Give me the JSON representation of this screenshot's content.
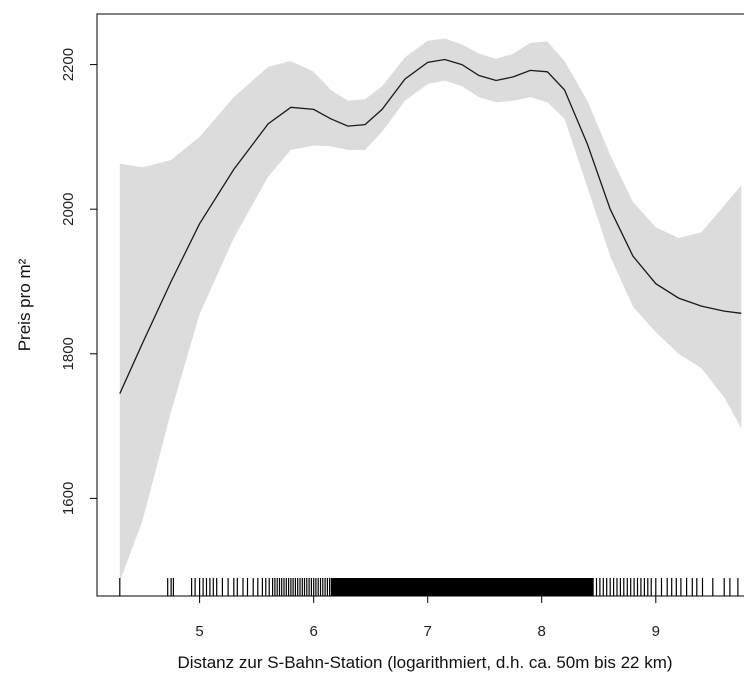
{
  "chart_data": {
    "type": "line",
    "title": "",
    "xlabel": "Distanz zur S-Bahn-Station (logarithmiert, d.h. ca. 50m bis 22 km)",
    "ylabel": "Preis pro m²",
    "xlim": [
      4.1,
      9.8
    ],
    "ylim": [
      1465,
      2270
    ],
    "x_ticks": [
      5,
      6,
      7,
      8,
      9
    ],
    "y_ticks": [
      1600,
      1800,
      2000,
      2200
    ],
    "grid": false,
    "legend": "none",
    "colors": {
      "line": "#1a1a1a",
      "band": "#dcdcdc",
      "rug": "#000000",
      "axis": "#000000"
    },
    "series": [
      {
        "type": "line",
        "points": [
          [
            4.3,
            1745
          ],
          [
            4.5,
            1815
          ],
          [
            4.75,
            1900
          ],
          [
            5.0,
            1980
          ],
          [
            5.3,
            2055
          ],
          [
            5.6,
            2118
          ],
          [
            5.8,
            2141
          ],
          [
            6.0,
            2138
          ],
          [
            6.15,
            2125
          ],
          [
            6.3,
            2115
          ],
          [
            6.45,
            2117
          ],
          [
            6.6,
            2138
          ],
          [
            6.8,
            2180
          ],
          [
            7.0,
            2203
          ],
          [
            7.15,
            2207
          ],
          [
            7.3,
            2200
          ],
          [
            7.45,
            2185
          ],
          [
            7.6,
            2178
          ],
          [
            7.75,
            2183
          ],
          [
            7.9,
            2192
          ],
          [
            8.05,
            2190
          ],
          [
            8.2,
            2165
          ],
          [
            8.4,
            2090
          ],
          [
            8.6,
            2000
          ],
          [
            8.8,
            1935
          ],
          [
            9.0,
            1897
          ],
          [
            9.2,
            1877
          ],
          [
            9.4,
            1866
          ],
          [
            9.6,
            1859
          ],
          [
            9.75,
            1856
          ]
        ]
      },
      {
        "type": "band",
        "upper": [
          [
            4.3,
            2063
          ],
          [
            4.5,
            2058
          ],
          [
            4.75,
            2068
          ],
          [
            5.0,
            2100
          ],
          [
            5.3,
            2155
          ],
          [
            5.6,
            2197
          ],
          [
            5.8,
            2205
          ],
          [
            6.0,
            2190
          ],
          [
            6.15,
            2165
          ],
          [
            6.3,
            2150
          ],
          [
            6.45,
            2152
          ],
          [
            6.6,
            2170
          ],
          [
            6.8,
            2210
          ],
          [
            7.0,
            2233
          ],
          [
            7.15,
            2236
          ],
          [
            7.3,
            2228
          ],
          [
            7.45,
            2215
          ],
          [
            7.6,
            2208
          ],
          [
            7.75,
            2215
          ],
          [
            7.9,
            2230
          ],
          [
            8.05,
            2232
          ],
          [
            8.2,
            2205
          ],
          [
            8.4,
            2150
          ],
          [
            8.6,
            2075
          ],
          [
            8.8,
            2010
          ],
          [
            9.0,
            1975
          ],
          [
            9.2,
            1960
          ],
          [
            9.4,
            1968
          ],
          [
            9.6,
            2005
          ],
          [
            9.75,
            2033
          ]
        ],
        "lower": [
          [
            4.3,
            1485
          ],
          [
            4.5,
            1570
          ],
          [
            4.75,
            1720
          ],
          [
            5.0,
            1855
          ],
          [
            5.3,
            1960
          ],
          [
            5.6,
            2045
          ],
          [
            5.8,
            2082
          ],
          [
            6.0,
            2088
          ],
          [
            6.15,
            2087
          ],
          [
            6.3,
            2082
          ],
          [
            6.45,
            2082
          ],
          [
            6.6,
            2107
          ],
          [
            6.8,
            2150
          ],
          [
            7.0,
            2173
          ],
          [
            7.15,
            2178
          ],
          [
            7.3,
            2170
          ],
          [
            7.45,
            2155
          ],
          [
            7.6,
            2148
          ],
          [
            7.75,
            2150
          ],
          [
            7.9,
            2155
          ],
          [
            8.05,
            2148
          ],
          [
            8.2,
            2125
          ],
          [
            8.4,
            2030
          ],
          [
            8.6,
            1935
          ],
          [
            8.8,
            1865
          ],
          [
            9.0,
            1830
          ],
          [
            9.2,
            1800
          ],
          [
            9.4,
            1780
          ],
          [
            9.6,
            1740
          ],
          [
            9.75,
            1697
          ]
        ]
      }
    ],
    "rug_x": [
      4.3,
      4.72,
      4.75,
      4.77,
      4.93,
      4.96,
      5.0,
      5.03,
      5.06,
      5.09,
      5.12,
      5.15,
      5.2,
      5.25,
      5.3,
      5.33,
      5.38,
      5.42,
      5.47,
      5.51,
      5.55,
      5.58,
      5.61,
      5.64,
      5.66,
      5.68,
      5.7,
      5.72,
      5.74,
      5.76,
      5.78,
      5.8,
      5.82,
      5.84,
      5.86,
      5.88,
      5.9,
      5.92,
      5.94,
      5.96,
      5.98,
      6.0,
      6.02,
      6.04,
      6.06,
      6.08,
      6.1,
      6.12,
      6.14,
      8.45,
      8.48,
      8.51,
      8.54,
      8.57,
      8.6,
      8.63,
      8.66,
      8.69,
      8.72,
      8.75,
      8.78,
      8.81,
      8.84,
      8.87,
      8.9,
      8.93,
      8.96,
      9.0,
      9.05,
      9.1,
      9.14,
      9.18,
      9.22,
      9.27,
      9.32,
      9.36,
      9.41,
      9.5,
      9.6,
      9.65,
      9.72
    ],
    "rug_dense_ranges": [
      [
        6.15,
        8.45
      ]
    ]
  }
}
